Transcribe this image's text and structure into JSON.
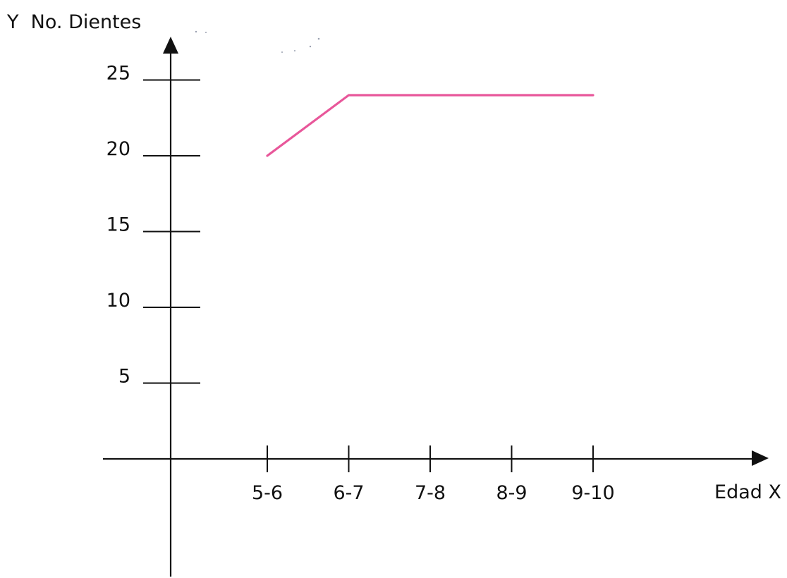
{
  "chart_data": {
    "type": "line",
    "ylabel": "Y  No. Dientes",
    "xlabel": "Edad X",
    "categories": [
      "5-6",
      "6-7",
      "7-8",
      "8-9",
      "9-10"
    ],
    "y_ticks": [
      5,
      10,
      15,
      20,
      25
    ],
    "y_tick_labels": [
      "5",
      "10",
      "15",
      "20",
      "25"
    ],
    "ylim": [
      0,
      25
    ],
    "grid": false,
    "legend": "none",
    "series": [
      {
        "values": [
          20,
          24,
          24,
          24,
          24
        ],
        "color": "#e8579a"
      }
    ]
  }
}
